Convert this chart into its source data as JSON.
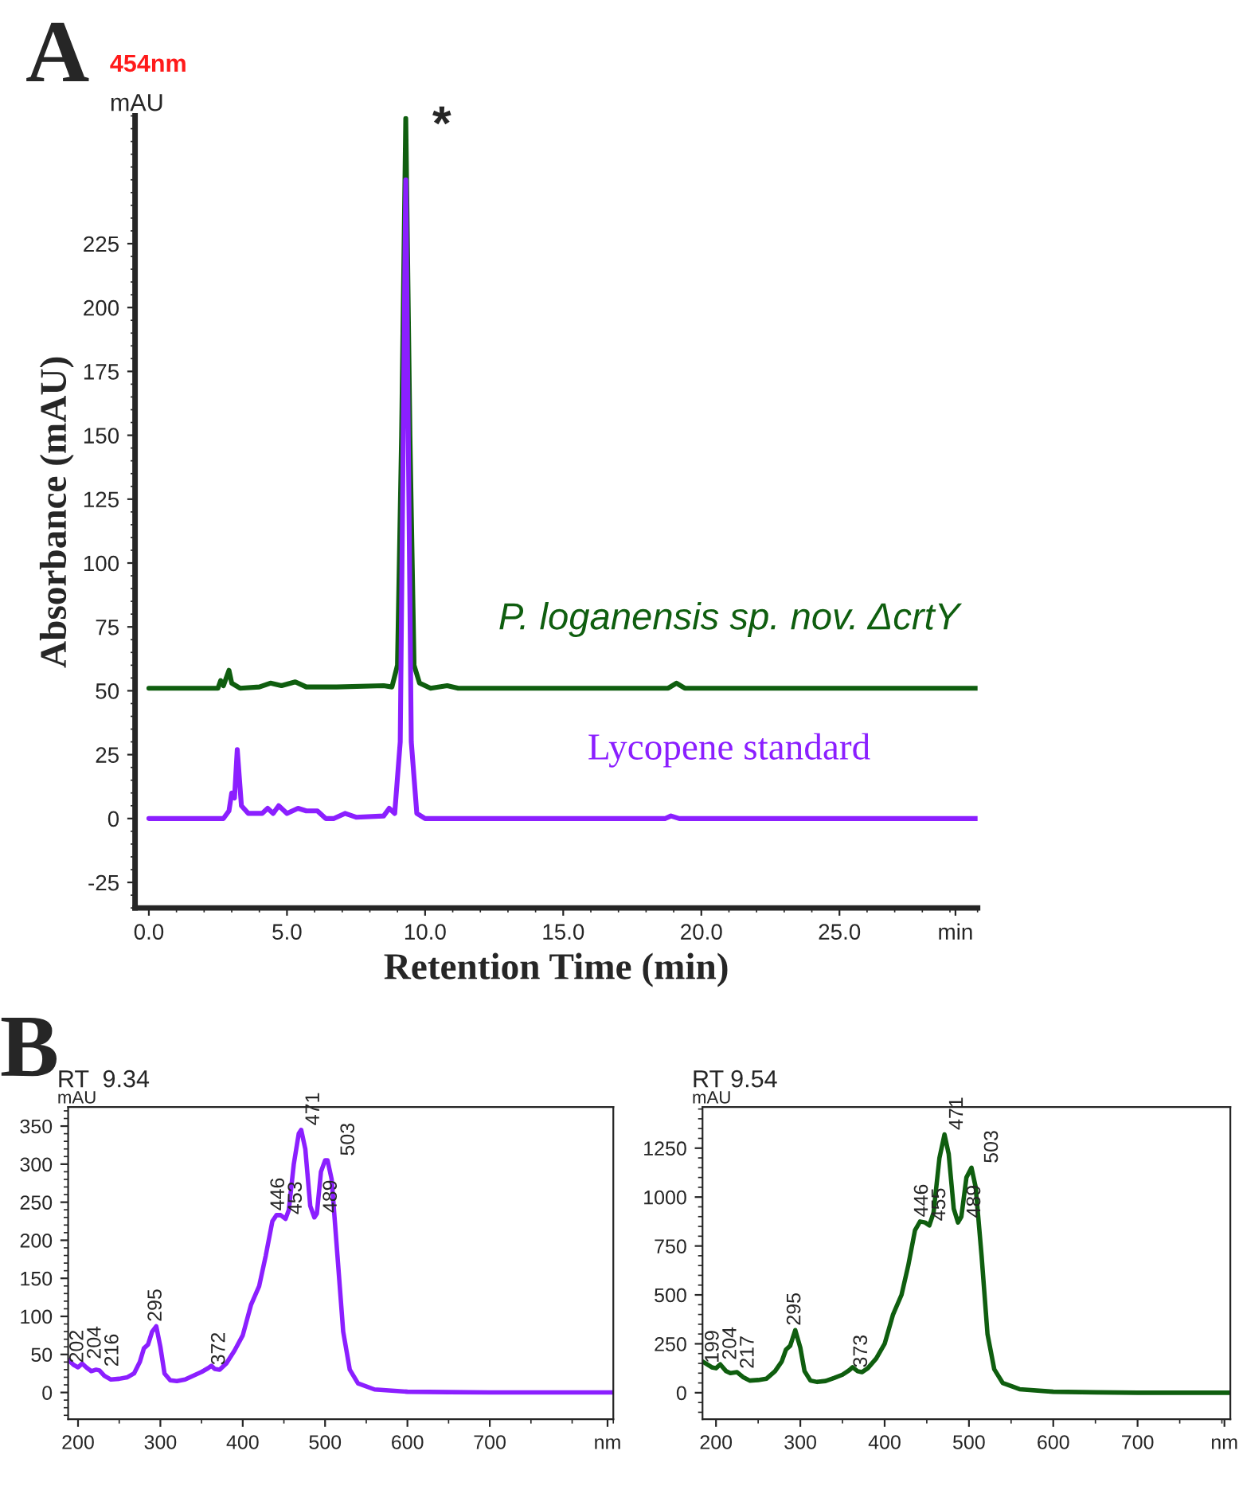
{
  "chart_data": [
    {
      "type": "line",
      "title": "454nm",
      "xlabel": "Retention Time (min)",
      "ylabel": "Absorbance (mAU)",
      "annotations": [
        "A",
        "mAU",
        {
          "text": "*",
          "x": 9.3,
          "y": 274
        }
      ],
      "xlim": [
        -0.5,
        30.0
      ],
      "ylim": [
        -35,
        275
      ],
      "xticks": [
        {
          "value": 0,
          "label": "0.0"
        },
        {
          "value": 5,
          "label": "5.0"
        },
        {
          "value": 10,
          "label": "10.0"
        },
        {
          "value": 15,
          "label": "15.0"
        },
        {
          "value": 20,
          "label": "20.0"
        },
        {
          "value": 25,
          "label": "25.0"
        },
        {
          "value": 29.2,
          "label": "min"
        }
      ],
      "yticks": [
        -25,
        0,
        25,
        50,
        75,
        100,
        125,
        150,
        175,
        200,
        225
      ],
      "grid": false,
      "legend": false,
      "series": [
        {
          "name": "P. loganensis sp. nov. ΔcrtY",
          "color": "#0f5e0f",
          "x": [
            0,
            2.5,
            2.6,
            2.7,
            2.9,
            3.0,
            3.3,
            4.0,
            4.4,
            4.8,
            5.3,
            5.7,
            6.8,
            8.5,
            8.8,
            9.0,
            9.15,
            9.3,
            9.45,
            9.6,
            9.8,
            10.2,
            10.8,
            11.2,
            18.8,
            19.1,
            19.4,
            30
          ],
          "values": [
            51,
            51,
            54,
            52,
            58,
            53,
            51,
            51.5,
            53,
            52,
            53.5,
            51.5,
            51.5,
            52,
            51.5,
            60,
            150,
            274,
            150,
            60,
            53,
            51,
            52,
            51,
            51,
            53,
            51,
            51
          ]
        },
        {
          "name": "Lycopene standard",
          "color": "#8b1fff",
          "x": [
            0,
            2.7,
            2.9,
            3.0,
            3.1,
            3.2,
            3.35,
            3.6,
            4.1,
            4.3,
            4.5,
            4.7,
            5.0,
            5.4,
            5.7,
            6.1,
            6.4,
            6.7,
            7.1,
            7.5,
            8.5,
            8.7,
            8.9,
            9.1,
            9.3,
            9.5,
            9.7,
            10.0,
            18.7,
            18.9,
            19.2,
            30
          ],
          "values": [
            0,
            0,
            3,
            10,
            8,
            27,
            5,
            2,
            2,
            4,
            2,
            5,
            2,
            4,
            3,
            3,
            0,
            0,
            2,
            0.5,
            1,
            4,
            2,
            30,
            250,
            30,
            2,
            0,
            0,
            1,
            0,
            0
          ]
        }
      ]
    },
    {
      "type": "line",
      "title": "RT  9.34",
      "ylabel": "mAU",
      "annotations": [
        "B",
        {
          "text": "202",
          "x": 200,
          "y": 33
        },
        {
          "text": "204",
          "x": 205,
          "y": 38
        },
        {
          "text": "216",
          "x": 216,
          "y": 28
        },
        {
          "text": "295",
          "x": 295,
          "y": 87
        },
        {
          "text": "372",
          "x": 372,
          "y": 30
        },
        {
          "text": "446",
          "x": 444,
          "y": 233
        },
        {
          "text": "453",
          "x": 452,
          "y": 228
        },
        {
          "text": "471",
          "x": 471,
          "y": 345
        },
        {
          "text": "489",
          "x": 487,
          "y": 230
        },
        {
          "text": "503",
          "x": 502,
          "y": 305
        }
      ],
      "xlim": [
        188,
        850
      ],
      "ylim": [
        -35,
        375
      ],
      "xticks": [
        200,
        300,
        400,
        500,
        600,
        700,
        {
          "value": 843,
          "label": "nm"
        }
      ],
      "yticks": [
        0,
        50,
        100,
        150,
        200,
        250,
        300,
        350
      ],
      "grid": false,
      "legend": false,
      "series": [
        {
          "color": "#8b1fff",
          "x": [
            188,
            195,
            200,
            205,
            210,
            216,
            222,
            226,
            232,
            240,
            250,
            260,
            268,
            275,
            280,
            285,
            290,
            295,
            300,
            305,
            312,
            320,
            330,
            340,
            350,
            358,
            362,
            366,
            372,
            380,
            390,
            400,
            410,
            420,
            428,
            436,
            441,
            446,
            452,
            456,
            462,
            468,
            471,
            476,
            482,
            487,
            490,
            495,
            500,
            503,
            508,
            515,
            522,
            530,
            540,
            560,
            600,
            650,
            700,
            850
          ],
          "values": [
            43,
            36,
            33,
            38,
            33,
            28,
            30,
            29,
            22,
            17,
            18,
            20,
            25,
            40,
            58,
            63,
            80,
            87,
            60,
            25,
            16,
            15,
            17,
            22,
            27,
            32,
            35,
            31,
            30,
            38,
            55,
            75,
            115,
            140,
            180,
            225,
            233,
            233,
            228,
            240,
            300,
            340,
            345,
            320,
            245,
            230,
            235,
            290,
            305,
            305,
            280,
            180,
            80,
            30,
            12,
            4,
            1,
            0.5,
            0,
            0
          ]
        }
      ]
    },
    {
      "type": "line",
      "title": "RT 9.54",
      "ylabel": "mAU",
      "annotations": [
        {
          "text": "199",
          "x": 197,
          "y": 128
        },
        {
          "text": "204",
          "x": 205,
          "y": 145
        },
        {
          "text": "217",
          "x": 217,
          "y": 100
        },
        {
          "text": "295",
          "x": 294,
          "y": 320
        },
        {
          "text": "373",
          "x": 373,
          "y": 105
        },
        {
          "text": "446",
          "x": 445,
          "y": 875
        },
        {
          "text": "455",
          "x": 453,
          "y": 855
        },
        {
          "text": "471",
          "x": 471,
          "y": 1320
        },
        {
          "text": "489",
          "x": 487,
          "y": 870
        },
        {
          "text": "503",
          "x": 503,
          "y": 1150
        }
      ],
      "xlim": [
        184,
        810
      ],
      "ylim": [
        -135,
        1460
      ],
      "xticks": [
        200,
        300,
        400,
        500,
        600,
        700,
        {
          "value": 803,
          "label": "nm"
        }
      ],
      "yticks": [
        0,
        250,
        500,
        750,
        1000,
        1250
      ],
      "grid": false,
      "legend": false,
      "series": [
        {
          "color": "#0f5e0f",
          "x": [
            184,
            195,
            200,
            205,
            212,
            217,
            225,
            232,
            240,
            250,
            260,
            270,
            278,
            283,
            288,
            294,
            300,
            305,
            312,
            320,
            330,
            340,
            350,
            358,
            362,
            368,
            373,
            380,
            390,
            400,
            410,
            420,
            428,
            436,
            442,
            448,
            453,
            458,
            465,
            471,
            476,
            482,
            487,
            491,
            497,
            503,
            508,
            515,
            522,
            530,
            540,
            560,
            600,
            650,
            700,
            810
          ],
          "values": [
            160,
            130,
            125,
            145,
            110,
            100,
            105,
            80,
            62,
            65,
            72,
            110,
            160,
            220,
            240,
            320,
            230,
            110,
            62,
            55,
            60,
            75,
            92,
            115,
            130,
            110,
            105,
            125,
            175,
            250,
            400,
            500,
            650,
            830,
            875,
            870,
            855,
            920,
            1200,
            1320,
            1220,
            940,
            870,
            900,
            1100,
            1150,
            1050,
            700,
            300,
            120,
            50,
            18,
            5,
            2,
            0,
            0
          ]
        }
      ]
    }
  ]
}
